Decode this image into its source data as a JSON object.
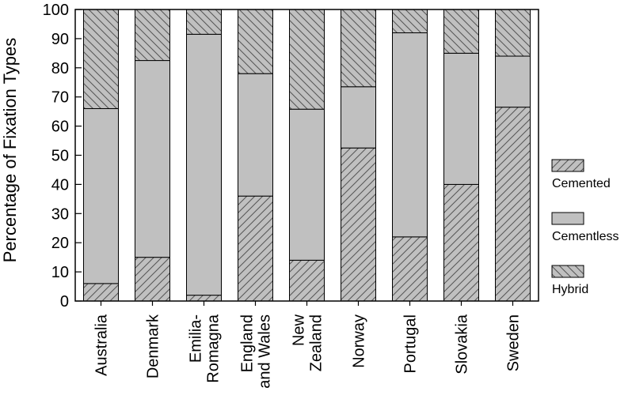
{
  "chart_data": {
    "type": "bar",
    "stacked": true,
    "ylabel": "Percentage of Fixation Types",
    "xlabel": "",
    "ylim": [
      0,
      100
    ],
    "yticks": [
      0,
      10,
      20,
      30,
      40,
      50,
      60,
      70,
      80,
      90,
      100
    ],
    "grid": false,
    "legend_placement": "right",
    "categories": [
      [
        "Australia"
      ],
      [
        "Denmark"
      ],
      [
        "Emilia-",
        "Romagna"
      ],
      [
        "England",
        "and Wales"
      ],
      [
        "New",
        "Zealand"
      ],
      [
        "Norway"
      ],
      [
        "Portugal"
      ],
      [
        "Slovakia"
      ],
      [
        "Sweden"
      ]
    ],
    "series": [
      {
        "name": "Cemented",
        "pattern": "forward-hatch",
        "color": "#c0c0c0",
        "values": [
          6,
          15,
          2,
          36,
          14,
          52.5,
          22,
          40,
          66.5
        ]
      },
      {
        "name": "Cementless",
        "pattern": "solid",
        "color": "#c0c0c0",
        "values": [
          60,
          67.5,
          89.5,
          42,
          51.8,
          21,
          70,
          45,
          17.5
        ]
      },
      {
        "name": "Hybrid",
        "pattern": "back-hatch",
        "color": "#c0c0c0",
        "values": [
          34,
          17.5,
          8.5,
          22,
          34.2,
          26.5,
          8,
          15,
          16
        ]
      }
    ]
  }
}
